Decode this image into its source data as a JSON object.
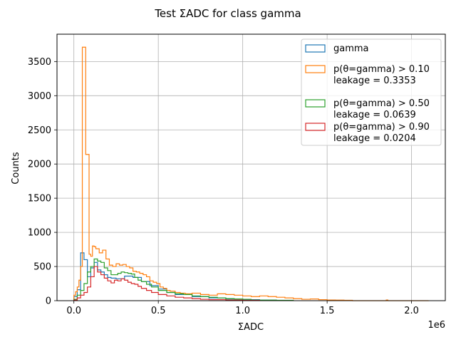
{
  "chart_data": {
    "type": "histogram-step",
    "title": "Test ΣADC for class gamma",
    "xlabel": "ΣADC",
    "ylabel": "Counts",
    "x_offset_label": "1e6",
    "xlim": [
      -0.1,
      2.2
    ],
    "ylim": [
      0,
      3900
    ],
    "x_ticks": [
      0.0,
      0.5,
      1.0,
      1.5,
      2.0
    ],
    "x_tick_labels": [
      "0.0",
      "0.5",
      "1.0",
      "1.5",
      "2.0"
    ],
    "y_ticks": [
      0,
      500,
      1000,
      1500,
      2000,
      2500,
      3000,
      3500
    ],
    "y_tick_labels": [
      "0",
      "500",
      "1000",
      "1500",
      "2000",
      "2500",
      "3000",
      "3500"
    ],
    "grid": true,
    "legend_position": "top-right",
    "legend": [
      {
        "line1": "gamma",
        "line2": "",
        "color": "#1f77b4"
      },
      {
        "line1": "p(θ=gamma) > 0.10",
        "line2": "leakage = 0.3353",
        "color": "#ff7f0e"
      },
      {
        "line1": "p(θ=gamma) > 0.50",
        "line2": "leakage = 0.0639",
        "color": "#2ca02c"
      },
      {
        "line1": "p(θ=gamma) > 0.90",
        "line2": "leakage = 0.0204",
        "color": "#d62728"
      }
    ],
    "series": [
      {
        "color": "#1f77b4",
        "x": [
          0.0,
          0.02,
          0.04,
          0.06,
          0.08,
          0.1,
          0.12,
          0.14,
          0.16,
          0.18,
          0.2,
          0.22,
          0.25,
          0.3,
          0.35,
          0.4,
          0.45,
          0.5,
          0.55,
          0.6,
          0.7,
          0.8,
          0.9,
          1.0,
          1.1,
          1.2
        ],
        "y": [
          60,
          160,
          700,
          600,
          350,
          480,
          560,
          450,
          420,
          380,
          340,
          330,
          320,
          360,
          340,
          280,
          220,
          170,
          120,
          90,
          60,
          40,
          25,
          15,
          8,
          0
        ]
      },
      {
        "color": "#ff7f0e",
        "x": [
          0.0,
          0.01,
          0.02,
          0.03,
          0.04,
          0.05,
          0.07,
          0.09,
          0.1,
          0.11,
          0.12,
          0.13,
          0.15,
          0.17,
          0.19,
          0.21,
          0.23,
          0.25,
          0.27,
          0.29,
          0.31,
          0.33,
          0.35,
          0.37,
          0.39,
          0.41,
          0.43,
          0.45,
          0.47,
          0.49,
          0.51,
          0.53,
          0.55,
          0.57,
          0.6,
          0.63,
          0.66,
          0.7,
          0.75,
          0.8,
          0.85,
          0.9,
          0.95,
          1.0,
          1.05,
          1.1,
          1.15,
          1.2,
          1.25,
          1.3,
          1.35,
          1.4,
          1.45,
          1.5,
          1.55,
          1.6,
          1.65,
          1.85,
          1.86,
          2.1
        ],
        "y": [
          80,
          130,
          200,
          300,
          500,
          3710,
          2140,
          680,
          650,
          800,
          790,
          760,
          700,
          740,
          610,
          520,
          500,
          540,
          520,
          530,
          500,
          480,
          430,
          420,
          400,
          380,
          350,
          290,
          270,
          250,
          200,
          180,
          150,
          140,
          120,
          110,
          100,
          110,
          90,
          80,
          100,
          90,
          80,
          70,
          60,
          70,
          60,
          50,
          40,
          30,
          20,
          25,
          15,
          10,
          8,
          5,
          0,
          10,
          0,
          5
        ]
      },
      {
        "color": "#2ca02c",
        "x": [
          0.0,
          0.02,
          0.04,
          0.06,
          0.08,
          0.1,
          0.12,
          0.14,
          0.16,
          0.18,
          0.2,
          0.22,
          0.24,
          0.26,
          0.28,
          0.3,
          0.32,
          0.34,
          0.36,
          0.38,
          0.4,
          0.43,
          0.46,
          0.5,
          0.55,
          0.6,
          0.65,
          0.7,
          0.75,
          0.8,
          0.85,
          0.9,
          0.95,
          1.0,
          1.05,
          1.1,
          1.2,
          1.3
        ],
        "y": [
          20,
          80,
          150,
          250,
          420,
          500,
          610,
          580,
          560,
          480,
          440,
          380,
          380,
          400,
          420,
          410,
          400,
          390,
          340,
          300,
          280,
          240,
          200,
          150,
          120,
          100,
          90,
          70,
          60,
          50,
          40,
          30,
          25,
          20,
          10,
          8,
          5,
          0
        ]
      },
      {
        "color": "#d62728",
        "x": [
          0.0,
          0.02,
          0.04,
          0.06,
          0.08,
          0.1,
          0.12,
          0.14,
          0.16,
          0.18,
          0.2,
          0.22,
          0.24,
          0.26,
          0.28,
          0.3,
          0.32,
          0.34,
          0.36,
          0.38,
          0.4,
          0.43,
          0.46,
          0.5,
          0.55,
          0.6,
          0.65,
          0.7,
          0.75,
          0.8,
          0.9,
          1.0,
          1.1
        ],
        "y": [
          10,
          40,
          80,
          120,
          200,
          350,
          500,
          420,
          380,
          330,
          290,
          260,
          300,
          290,
          320,
          300,
          270,
          250,
          240,
          210,
          180,
          150,
          120,
          90,
          70,
          50,
          40,
          30,
          20,
          15,
          10,
          5,
          0
        ]
      }
    ]
  }
}
